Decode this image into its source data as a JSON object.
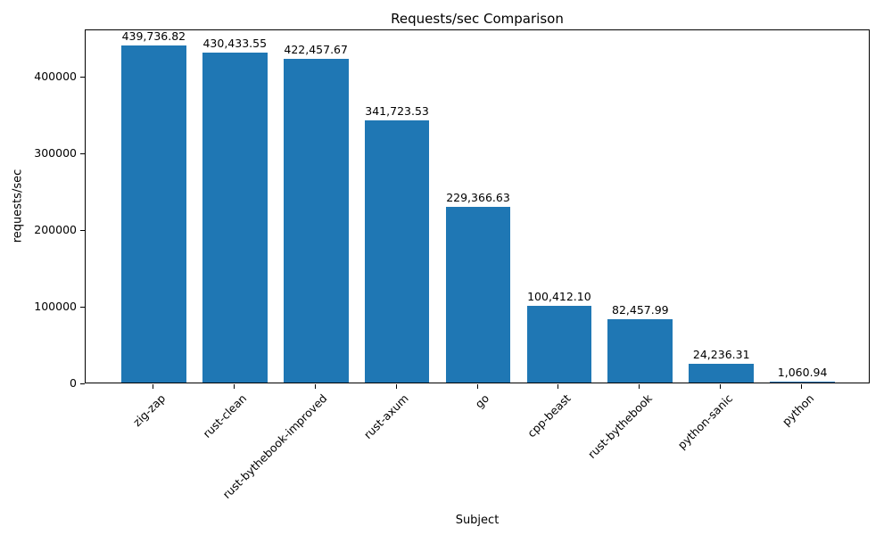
{
  "chart_data": {
    "type": "bar",
    "title": "Requests/sec Comparison",
    "xlabel": "Subject",
    "ylabel": "requests/sec",
    "categories": [
      "zig-zap",
      "rust-clean",
      "rust-bythebook-improved",
      "rust-axum",
      "go",
      "cpp-beast",
      "rust-bythebook",
      "python-sanic",
      "python"
    ],
    "values": [
      439736.82,
      430433.55,
      422457.67,
      341723.53,
      229366.63,
      100412.1,
      82457.99,
      24236.31,
      1060.94
    ],
    "value_labels": [
      "439,736.82",
      "430,433.55",
      "422,457.67",
      "341,723.53",
      "229,366.63",
      "100,412.10",
      "82,457.99",
      "24,236.31",
      "1,060.94"
    ],
    "ylim": [
      0,
      462000
    ],
    "yticks": [
      0,
      100000,
      200000,
      300000,
      400000
    ],
    "ytick_labels": [
      "0",
      "100000",
      "200000",
      "300000",
      "400000"
    ],
    "bar_color": "#1f77b4",
    "grid": false,
    "legend": null
  }
}
